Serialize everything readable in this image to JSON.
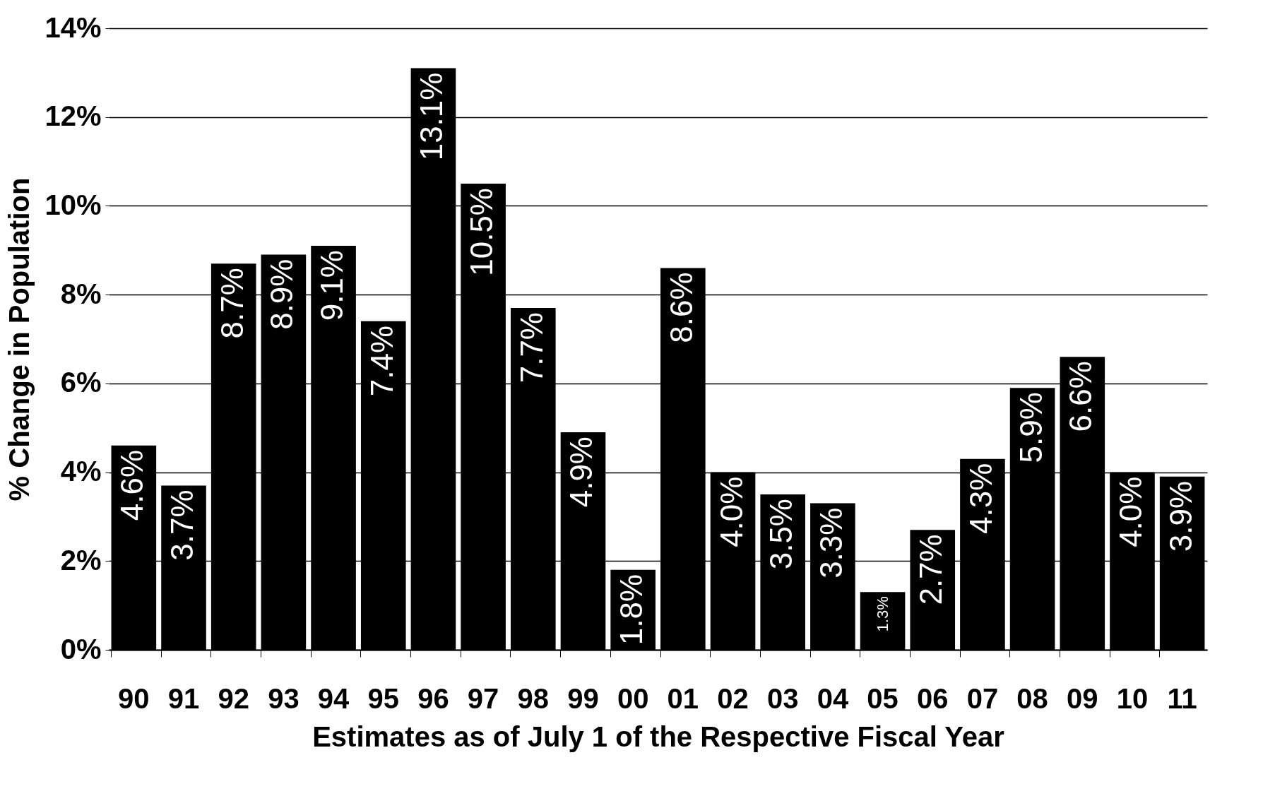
{
  "chart_data": {
    "type": "bar",
    "xlabel": "Estimates as of July 1 of the Respective Fiscal Year",
    "ylabel": "% Change in Population",
    "categories": [
      "90",
      "91",
      "92",
      "93",
      "94",
      "95",
      "96",
      "97",
      "98",
      "99",
      "00",
      "01",
      "02",
      "03",
      "04",
      "05",
      "06",
      "07",
      "08",
      "09",
      "10",
      "11"
    ],
    "values": [
      4.6,
      3.7,
      8.7,
      8.9,
      9.1,
      7.4,
      13.1,
      10.5,
      7.7,
      4.9,
      1.8,
      8.6,
      4.0,
      3.5,
      3.3,
      1.3,
      2.7,
      4.3,
      5.9,
      6.6,
      4.0,
      3.9
    ],
    "value_labels": [
      "4.6%",
      "3.7%",
      "8.7%",
      "8.9%",
      "9.1%",
      "7.4%",
      "13.1%",
      "10.5%",
      "7.7%",
      "4.9%",
      "1.8%",
      "8.6%",
      "4.0%",
      "3.5%",
      "3.3%",
      "1.3%",
      "2.7%",
      "4.3%",
      "5.9%",
      "6.6%",
      "4.0%",
      "3.9%"
    ],
    "color": "#000000",
    "ylim": [
      0,
      14
    ],
    "yticks": [
      {
        "value": 0,
        "label": "0%"
      },
      {
        "value": 2,
        "label": "2%"
      },
      {
        "value": 4,
        "label": "4%"
      },
      {
        "value": 6,
        "label": "6%"
      },
      {
        "value": 8,
        "label": "8%"
      },
      {
        "value": 10,
        "label": "10%"
      },
      {
        "value": 12,
        "label": "12%"
      },
      {
        "value": 14,
        "label": "14%"
      }
    ],
    "grid": "y"
  }
}
